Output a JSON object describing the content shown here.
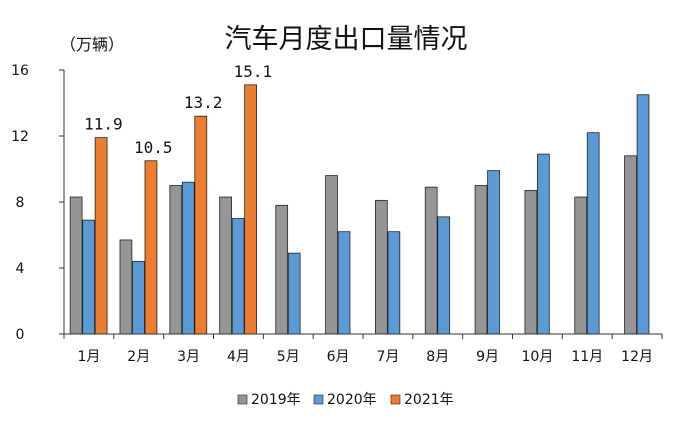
{
  "chart_data": {
    "type": "bar",
    "title": "汽车月度出口量情况",
    "unit_label": "（万辆）",
    "categories": [
      "1月",
      "2月",
      "3月",
      "4月",
      "5月",
      "6月",
      "7月",
      "8月",
      "9月",
      "10月",
      "11月",
      "12月"
    ],
    "series": [
      {
        "name": "2019年",
        "color": "#969696",
        "values": [
          8.3,
          5.7,
          9.0,
          8.3,
          7.8,
          9.6,
          8.1,
          8.9,
          9.0,
          8.7,
          8.3,
          10.8
        ]
      },
      {
        "name": "2020年",
        "color": "#5b9bd5",
        "values": [
          6.9,
          4.4,
          9.2,
          7.0,
          4.9,
          6.2,
          6.2,
          7.1,
          9.9,
          10.9,
          12.2,
          14.5
        ]
      },
      {
        "name": "2021年",
        "color": "#ed7d31",
        "values": [
          11.9,
          10.5,
          13.2,
          15.1,
          null,
          null,
          null,
          null,
          null,
          null,
          null,
          null
        ]
      }
    ],
    "data_labels": [
      "11.9",
      "10.5",
      "13.2",
      "15.1"
    ],
    "yticks": [
      "0",
      "4",
      "8",
      "12",
      "16"
    ],
    "ylim": [
      0,
      16
    ],
    "grid": false,
    "legend_position": "bottom"
  }
}
